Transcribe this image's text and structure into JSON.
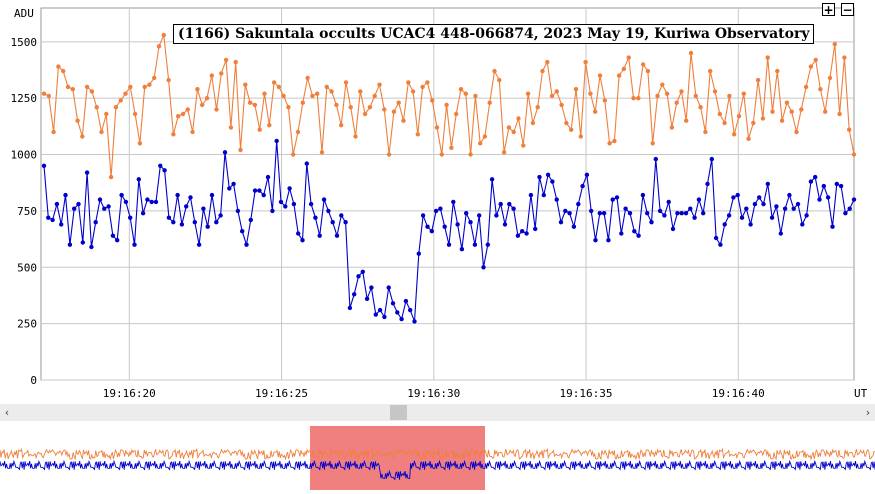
{
  "controls": {
    "zoom_in": "+",
    "zoom_out": "−"
  },
  "scrollbar": {
    "left_arrow": "‹",
    "right_arrow": "›"
  },
  "chart_data": {
    "type": "line",
    "title": "(1166) Sakuntala occults UCAC4 448-066874, 2023 May 19, Kuriwa Observatory",
    "ylabel": "ADU",
    "xlabel": "UT",
    "ylim": [
      0,
      1650
    ],
    "yticks": [
      0,
      250,
      500,
      750,
      1000,
      1250,
      1500
    ],
    "xlim": [
      "19:16:17.1",
      "19:16:43.8"
    ],
    "xticks": [
      "19:16:20",
      "19:16:25",
      "19:16:30",
      "19:16:35",
      "19:16:40"
    ],
    "grid": true,
    "colors": {
      "comparison": "#f07f3c",
      "target": "#0000cc",
      "highlight": "#f08080"
    },
    "series": [
      {
        "color": "#f07f3c",
        "values": [
          1270,
          1260,
          1100,
          1390,
          1370,
          1300,
          1290,
          1150,
          1080,
          1300,
          1280,
          1210,
          1100,
          1180,
          900,
          1210,
          1240,
          1270,
          1300,
          1180,
          1050,
          1300,
          1310,
          1340,
          1480,
          1530,
          1330,
          1090,
          1170,
          1180,
          1200,
          1100,
          1290,
          1220,
          1250,
          1350,
          1200,
          1360,
          1420,
          1120,
          1410,
          1020,
          1310,
          1230,
          1220,
          1110,
          1270,
          1130,
          1320,
          1300,
          1260,
          1210,
          1000,
          1100,
          1230,
          1340,
          1260,
          1270,
          1010,
          1300,
          1280,
          1220,
          1130,
          1320,
          1210,
          1080,
          1280,
          1180,
          1210,
          1260,
          1310,
          1200,
          1000,
          1190,
          1230,
          1150,
          1320,
          1280,
          1090,
          1300,
          1320,
          1240,
          1120,
          1000,
          1220,
          1030,
          1180,
          1290,
          1270,
          1000,
          1260,
          1050,
          1080,
          1230,
          1370,
          1330,
          1010,
          1120,
          1100,
          1160,
          1040,
          1270,
          1140,
          1210,
          1370,
          1410,
          1260,
          1280,
          1220,
          1140,
          1110,
          1290,
          1080,
          1410,
          1270,
          1190,
          1350,
          1240,
          1050,
          1060,
          1350,
          1380,
          1430,
          1250,
          1250,
          1400,
          1370,
          1050,
          1260,
          1310,
          1270,
          1120,
          1230,
          1280,
          1150,
          1450,
          1260,
          1210,
          1100,
          1370,
          1280,
          1180,
          1140,
          1260,
          1090,
          1170,
          1270,
          1070,
          1140,
          1330,
          1160,
          1430,
          1190,
          1370,
          1150,
          1230,
          1190,
          1100,
          1200,
          1300,
          1390,
          1420,
          1290,
          1190,
          1340,
          1490,
          1180,
          1430,
          1110,
          1000
        ]
      },
      {
        "color": "#0000cc",
        "values": [
          950,
          720,
          710,
          780,
          690,
          820,
          600,
          760,
          780,
          610,
          920,
          590,
          700,
          800,
          760,
          770,
          640,
          620,
          820,
          790,
          720,
          600,
          890,
          740,
          800,
          790,
          790,
          950,
          930,
          720,
          700,
          820,
          690,
          770,
          810,
          700,
          600,
          760,
          680,
          820,
          700,
          730,
          1010,
          850,
          870,
          750,
          660,
          600,
          710,
          840,
          840,
          820,
          900,
          750,
          1060,
          790,
          770,
          850,
          780,
          650,
          620,
          960,
          780,
          720,
          640,
          800,
          750,
          700,
          640,
          730,
          700,
          320,
          380,
          460,
          480,
          360,
          410,
          290,
          310,
          280,
          410,
          340,
          300,
          270,
          350,
          310,
          260,
          560,
          730,
          680,
          660,
          750,
          760,
          680,
          600,
          790,
          690,
          580,
          740,
          700,
          600,
          730,
          500,
          600,
          890,
          730,
          780,
          690,
          780,
          760,
          640,
          660,
          650,
          820,
          670,
          900,
          820,
          910,
          880,
          800,
          700,
          750,
          740,
          680,
          780,
          860,
          910,
          750,
          620,
          740,
          740,
          620,
          800,
          810,
          650,
          760,
          740,
          660,
          640,
          820,
          740,
          700,
          980,
          750,
          730,
          790,
          670,
          740,
          740,
          740,
          760,
          720,
          800,
          740,
          870,
          980,
          630,
          600,
          690,
          730,
          810,
          820,
          720,
          760,
          690,
          780,
          810,
          780,
          870,
          720,
          770,
          650,
          760,
          820,
          760,
          780,
          690,
          730,
          880,
          900,
          800,
          860,
          810,
          680,
          870,
          860,
          740,
          760,
          800
        ]
      }
    ],
    "highlight": {
      "from": "19:16:28.1",
      "to": "19:16:32.2"
    }
  }
}
